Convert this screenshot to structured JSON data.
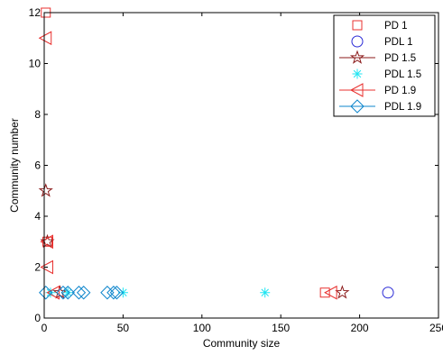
{
  "chart_data": {
    "type": "scatter",
    "title": "",
    "xlabel": "Community size",
    "ylabel": "Community number",
    "xlim": [
      0,
      250
    ],
    "ylim": [
      0,
      12
    ],
    "xticks": [
      0,
      50,
      100,
      150,
      200,
      250
    ],
    "yticks": [
      0,
      2,
      4,
      6,
      8,
      10,
      12
    ],
    "grid": false,
    "legend_position": "top-right",
    "series": [
      {
        "name": "PD 1",
        "color": "#e8312f",
        "marker": "square",
        "line": false,
        "points": [
          [
            1,
            12
          ],
          [
            2,
            3
          ],
          [
            178,
            1
          ]
        ]
      },
      {
        "name": "PDL 1",
        "color": "#2b2bd6",
        "marker": "circle",
        "line": false,
        "points": [
          [
            218,
            1
          ]
        ]
      },
      {
        "name": "PD 1.5",
        "color": "#8b1a1a",
        "marker": "star",
        "line": true,
        "points": [
          [
            1,
            5
          ],
          [
            2,
            3
          ],
          [
            10,
            1
          ],
          [
            189,
            1
          ]
        ]
      },
      {
        "name": "PDL 1.5",
        "color": "#1fe5f2",
        "marker": "asterisk",
        "line": false,
        "points": [
          [
            4,
            1
          ],
          [
            15,
            1
          ],
          [
            50,
            1
          ],
          [
            140,
            1
          ]
        ]
      },
      {
        "name": "PD 1.9",
        "color": "#e8312f",
        "marker": "triangle-left",
        "line": true,
        "points": [
          [
            1,
            11
          ],
          [
            2,
            3
          ],
          [
            2,
            2
          ],
          [
            6,
            1
          ],
          [
            182,
            1
          ]
        ]
      },
      {
        "name": "PDL 1.9",
        "color": "#0f86cc",
        "marker": "diamond",
        "line": true,
        "points": [
          [
            1,
            1
          ],
          [
            12,
            1
          ],
          [
            15,
            1
          ],
          [
            22,
            1
          ],
          [
            25,
            1
          ],
          [
            40,
            1
          ],
          [
            44,
            1
          ],
          [
            46,
            1
          ]
        ]
      }
    ]
  }
}
